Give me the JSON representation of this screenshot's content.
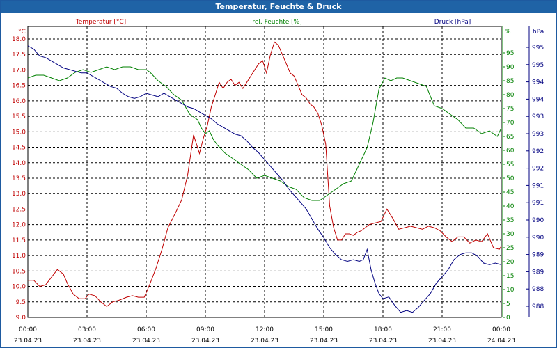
{
  "window": {
    "title": "Temperatur, Feuchte & Druck"
  },
  "chart_data": {
    "type": "line",
    "title": "Temperatur, Feuchte & Druck",
    "x_ticks": [
      {
        "time": "00:00",
        "date": "23.04.23"
      },
      {
        "time": "03:00",
        "date": "23.04.23"
      },
      {
        "time": "06:00",
        "date": "23.04.23"
      },
      {
        "time": "09:00",
        "date": "23.04.23"
      },
      {
        "time": "12:00",
        "date": "23.04.23"
      },
      {
        "time": "15:00",
        "date": "23.04.23"
      },
      {
        "time": "18:00",
        "date": "23.04.23"
      },
      {
        "time": "21:00",
        "date": "23.04.23"
      },
      {
        "time": "00:00",
        "date": "24.04.23"
      }
    ],
    "x_range_hours": [
      0,
      24
    ],
    "grid": true,
    "axes": {
      "temperature": {
        "label": "Temperatur [°C]",
        "unit": "°C",
        "side": "left",
        "color": "#c00000",
        "ylim": [
          9.0,
          18.0
        ],
        "ticks": [
          "18.0",
          "17.5",
          "17.0",
          "16.5",
          "16.0",
          "15.5",
          "15.0",
          "14.5",
          "14.0",
          "13.5",
          "13.0",
          "12.5",
          "12.0",
          "11.5",
          "11.0",
          "10.5",
          "10.0",
          "9.5",
          "9.0"
        ]
      },
      "humidity": {
        "label": "rel. Feuchte [%]",
        "unit": "%",
        "side": "right",
        "color": "#008000",
        "ylim": [
          0,
          100
        ],
        "ticks": [
          "95",
          "90",
          "85",
          "80",
          "75",
          "70",
          "65",
          "60",
          "55",
          "50",
          "45",
          "40",
          "35",
          "30",
          "25",
          "20",
          "15",
          "10",
          "5",
          "0"
        ]
      },
      "pressure": {
        "label": "Druck [hPa]",
        "unit": "hPa",
        "side": "right",
        "color": "#000080",
        "ylim": [
          987.6,
          995.8
        ],
        "ticks": [
          "995",
          "995",
          "994",
          "994",
          "993",
          "993",
          "992",
          "992",
          "991",
          "991",
          "990",
          "990",
          "989",
          "989",
          "988",
          "988"
        ]
      }
    },
    "series": [
      {
        "name": "Temperatur [°C]",
        "axis": "temperature",
        "color": "#c00000",
        "x": [
          0,
          0.3,
          0.6,
          0.9,
          1.2,
          1.5,
          1.8,
          2.0,
          2.3,
          2.6,
          2.9,
          3.1,
          3.4,
          3.7,
          4.0,
          4.3,
          4.6,
          5.0,
          5.3,
          5.6,
          5.9,
          6.2,
          6.5,
          6.8,
          7.1,
          7.5,
          7.8,
          8.1,
          8.4,
          8.7,
          8.9,
          9.1,
          9.3,
          9.5,
          9.7,
          9.9,
          10.1,
          10.3,
          10.5,
          10.7,
          10.9,
          11.1,
          11.3,
          11.5,
          11.7,
          11.9,
          12.1,
          12.3,
          12.5,
          12.7,
          12.9,
          13.1,
          13.3,
          13.5,
          13.7,
          13.9,
          14.1,
          14.3,
          14.5,
          14.7,
          14.9,
          15.1,
          15.3,
          15.5,
          15.7,
          15.9,
          16.1,
          16.3,
          16.5,
          16.7,
          16.9,
          17.1,
          17.3,
          17.6,
          17.9,
          18.2,
          18.5,
          18.8,
          19.1,
          19.4,
          19.7,
          20.0,
          20.3,
          20.6,
          20.9,
          21.2,
          21.5,
          21.8,
          22.1,
          22.4,
          22.7,
          23.0,
          23.3,
          23.6,
          23.9,
          24.0
        ],
        "values": [
          10.2,
          10.2,
          10.0,
          10.05,
          10.3,
          10.55,
          10.4,
          10.1,
          9.75,
          9.6,
          9.6,
          9.75,
          9.7,
          9.5,
          9.35,
          9.5,
          9.55,
          9.65,
          9.7,
          9.65,
          9.65,
          10.1,
          10.6,
          11.2,
          11.9,
          12.4,
          12.8,
          13.6,
          14.9,
          14.3,
          14.8,
          15.2,
          15.8,
          16.2,
          16.6,
          16.4,
          16.6,
          16.7,
          16.5,
          16.6,
          16.4,
          16.6,
          16.8,
          17.0,
          17.2,
          17.3,
          16.9,
          17.5,
          17.9,
          17.8,
          17.5,
          17.2,
          16.9,
          16.8,
          16.5,
          16.2,
          16.1,
          15.9,
          15.8,
          15.6,
          15.2,
          14.6,
          12.6,
          11.9,
          11.5,
          11.5,
          11.7,
          11.7,
          11.65,
          11.75,
          11.8,
          11.9,
          12.0,
          12.05,
          12.1,
          12.5,
          12.2,
          11.85,
          11.9,
          11.95,
          11.9,
          11.85,
          11.95,
          11.9,
          11.8,
          11.6,
          11.45,
          11.6,
          11.6,
          11.4,
          11.5,
          11.45,
          11.7,
          11.25,
          11.2,
          11.3
        ]
      },
      {
        "name": "rel. Feuchte [%]",
        "axis": "humidity",
        "color": "#008000",
        "x": [
          0,
          0.4,
          0.8,
          1.2,
          1.6,
          2.0,
          2.4,
          2.8,
          3.2,
          3.6,
          4.0,
          4.4,
          4.8,
          5.2,
          5.6,
          6.0,
          6.2,
          6.6,
          7.0,
          7.4,
          7.8,
          8.2,
          8.6,
          8.8,
          9.0,
          9.2,
          9.4,
          9.6,
          10.0,
          10.4,
          10.8,
          11.2,
          11.6,
          12.0,
          12.4,
          12.8,
          13.2,
          13.6,
          14.0,
          14.4,
          14.8,
          15.2,
          15.6,
          16.0,
          16.4,
          16.8,
          17.2,
          17.5,
          17.8,
          18.1,
          18.4,
          18.7,
          19.0,
          19.4,
          19.8,
          20.2,
          20.6,
          21.0,
          21.4,
          21.8,
          22.2,
          22.6,
          23.0,
          23.4,
          23.8,
          24.0
        ],
        "values": [
          86,
          87,
          87,
          86,
          85,
          86,
          88,
          89,
          88,
          89,
          90,
          89,
          90,
          90,
          89,
          89,
          88,
          85,
          83,
          80,
          78,
          73,
          71,
          68,
          66,
          67,
          64,
          62,
          59,
          57,
          55,
          53,
          50,
          51,
          50,
          49,
          47,
          46,
          43,
          42,
          42,
          44,
          46,
          48,
          49,
          55,
          61,
          70,
          82,
          86,
          85,
          86,
          86,
          85,
          84,
          83,
          76,
          75,
          73,
          71,
          68,
          68,
          66,
          67,
          65,
          68
        ]
      },
      {
        "name": "Druck [hPa]",
        "axis": "pressure",
        "color": "#000080",
        "x": [
          0,
          0.3,
          0.6,
          0.9,
          1.2,
          1.5,
          1.8,
          2.1,
          2.4,
          2.7,
          3.0,
          3.3,
          3.6,
          3.9,
          4.2,
          4.5,
          4.8,
          5.1,
          5.4,
          5.7,
          6.0,
          6.3,
          6.6,
          6.9,
          7.2,
          7.5,
          7.8,
          8.1,
          8.4,
          8.7,
          9.0,
          9.3,
          9.6,
          9.9,
          10.2,
          10.5,
          10.8,
          11.1,
          11.4,
          11.7,
          12.0,
          12.3,
          12.6,
          12.9,
          13.2,
          13.5,
          13.8,
          14.1,
          14.4,
          14.7,
          15.0,
          15.3,
          15.6,
          15.9,
          16.2,
          16.5,
          16.8,
          17.0,
          17.2,
          17.4,
          17.6,
          17.8,
          18.0,
          18.3,
          18.6,
          18.9,
          19.2,
          19.5,
          19.8,
          20.1,
          20.4,
          20.7,
          21.0,
          21.3,
          21.6,
          21.9,
          22.2,
          22.5,
          22.8,
          23.1,
          23.4,
          23.7,
          24.0
        ],
        "values": [
          995.6,
          995.5,
          995.3,
          995.25,
          995.15,
          995.05,
          994.95,
          994.9,
          994.85,
          994.8,
          994.8,
          994.7,
          994.6,
          994.5,
          994.4,
          994.35,
          994.2,
          994.1,
          994.05,
          994.1,
          994.2,
          994.15,
          994.1,
          994.2,
          994.1,
          994.0,
          993.9,
          993.8,
          993.75,
          993.65,
          993.55,
          993.45,
          993.3,
          993.2,
          993.1,
          993.0,
          992.95,
          992.8,
          992.6,
          992.45,
          992.25,
          992.05,
          991.85,
          991.65,
          991.4,
          991.2,
          991.0,
          990.8,
          990.5,
          990.2,
          989.95,
          989.65,
          989.45,
          989.3,
          989.25,
          989.3,
          989.25,
          989.3,
          989.6,
          989.0,
          988.6,
          988.3,
          988.15,
          988.2,
          987.95,
          987.75,
          987.8,
          987.75,
          987.9,
          988.1,
          988.3,
          988.6,
          988.8,
          989.0,
          989.3,
          989.45,
          989.5,
          989.5,
          989.4,
          989.2,
          989.15,
          989.2,
          989.15
        ]
      }
    ]
  }
}
